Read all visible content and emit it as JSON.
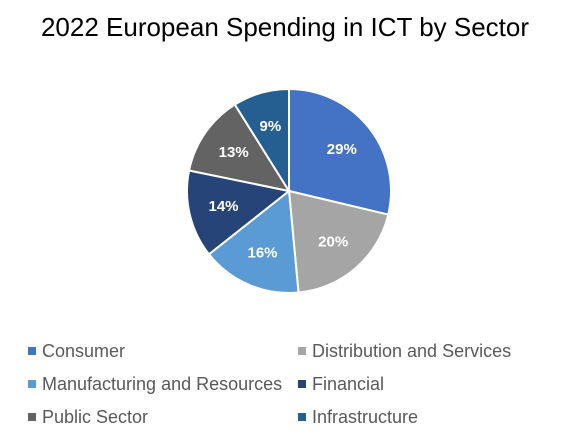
{
  "chart_data": {
    "type": "pie",
    "title": "2022 European Spending in ICT by Sector",
    "slices": [
      {
        "name": "Consumer",
        "value": 29,
        "label": "29%",
        "color": "#4472C4"
      },
      {
        "name": "Distribution and Services",
        "value": 20,
        "label": "20%",
        "color": "#A5A5A5"
      },
      {
        "name": "Manufacturing and Resources",
        "value": 16,
        "label": "16%",
        "color": "#5B9BD5"
      },
      {
        "name": "Financial",
        "value": 14,
        "label": "14%",
        "color": "#264478"
      },
      {
        "name": "Public Sector",
        "value": 13,
        "label": "13%",
        "color": "#636363"
      },
      {
        "name": "Infrastructure",
        "value": 9,
        "label": "9%",
        "color": "#255E91"
      }
    ],
    "legend_position": "bottom"
  }
}
